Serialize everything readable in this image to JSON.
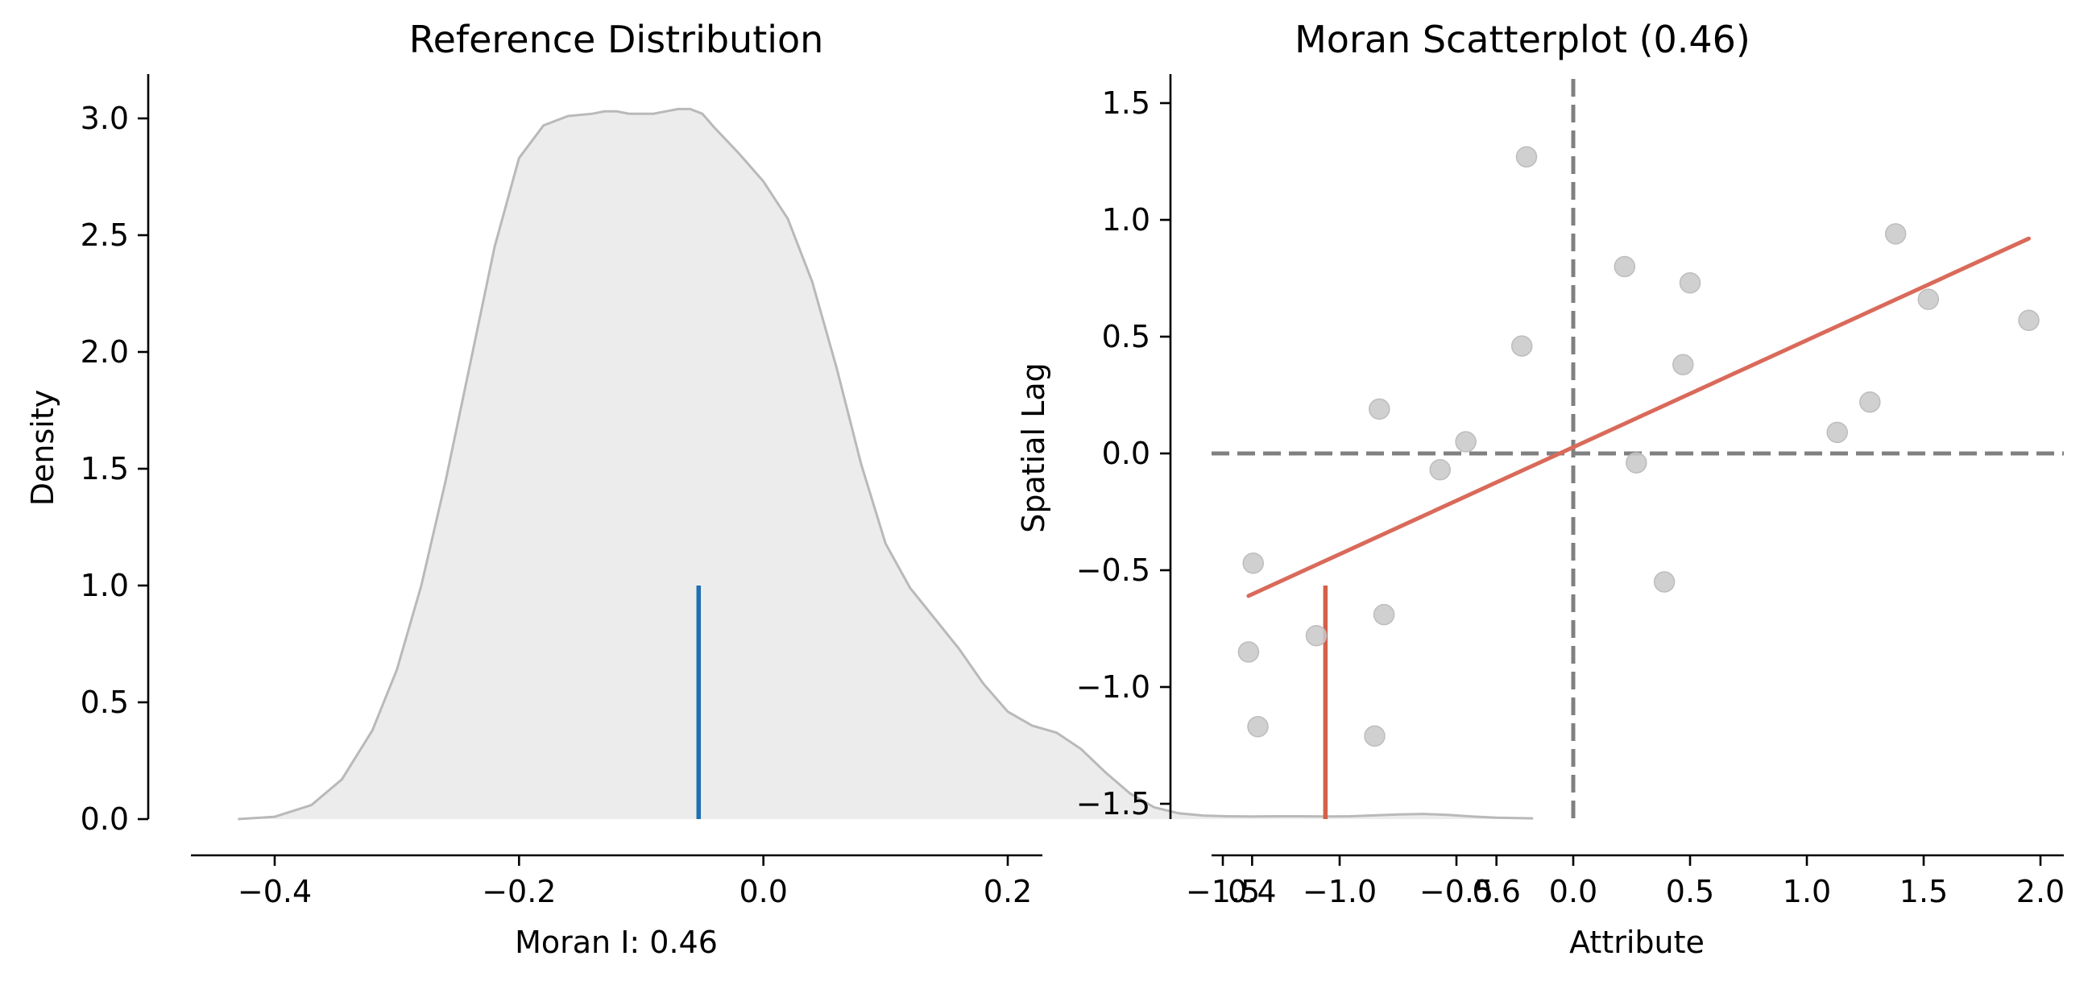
{
  "chart_data": [
    {
      "type": "area",
      "title": "Reference Distribution",
      "xlabel": "Moran I: 0.46",
      "ylabel": "Density",
      "xlim": [
        -0.48,
        0.69
      ],
      "ylim": [
        -0.0,
        3.2
      ],
      "xticks": [
        -0.4,
        -0.2,
        0.0,
        0.2,
        0.4,
        0.6
      ],
      "xtick_labels": [
        "−0.4",
        "−0.2",
        "0.0",
        "0.2",
        "0.4",
        "0.6"
      ],
      "yticks": [
        0.0,
        0.5,
        1.0,
        1.5,
        2.0,
        2.5,
        3.0
      ],
      "ytick_labels": [
        "0.0",
        "0.5",
        "1.0",
        "1.5",
        "2.0",
        "2.5",
        "3.0"
      ],
      "grid": false,
      "kde": {
        "x": [
          -0.43,
          -0.4,
          -0.37,
          -0.345,
          -0.32,
          -0.3,
          -0.28,
          -0.26,
          -0.24,
          -0.22,
          -0.2,
          -0.18,
          -0.16,
          -0.14,
          -0.13,
          -0.12,
          -0.11,
          -0.1,
          -0.09,
          -0.08,
          -0.07,
          -0.06,
          -0.05,
          -0.04,
          -0.02,
          0.0,
          0.02,
          0.04,
          0.06,
          0.08,
          0.1,
          0.12,
          0.14,
          0.16,
          0.18,
          0.2,
          0.22,
          0.24,
          0.26,
          0.28,
          0.3,
          0.32,
          0.34,
          0.36,
          0.38,
          0.4,
          0.42,
          0.44,
          0.46,
          0.48,
          0.5,
          0.52,
          0.54,
          0.56,
          0.58,
          0.6,
          0.63
        ],
        "density": [
          0.0,
          0.01,
          0.06,
          0.17,
          0.38,
          0.64,
          1.0,
          1.45,
          1.95,
          2.45,
          2.83,
          2.97,
          3.01,
          3.02,
          3.03,
          3.03,
          3.02,
          3.02,
          3.02,
          3.03,
          3.04,
          3.04,
          3.02,
          2.96,
          2.85,
          2.73,
          2.57,
          2.3,
          1.93,
          1.52,
          1.18,
          0.99,
          0.86,
          0.73,
          0.58,
          0.46,
          0.4,
          0.37,
          0.3,
          0.2,
          0.11,
          0.05,
          0.025,
          0.015,
          0.012,
          0.011,
          0.012,
          0.012,
          0.011,
          0.012,
          0.016,
          0.02,
          0.022,
          0.018,
          0.011,
          0.006,
          0.003
        ]
      },
      "fill_color": "#ececec",
      "line_color": "#b9b9b9",
      "vlines": [
        {
          "x": -0.053,
          "ymax": 1.0,
          "color": "#1f6fb4"
        },
        {
          "x": 0.46,
          "ymax": 1.0,
          "color": "#d4604a"
        }
      ]
    },
    {
      "type": "scatter",
      "title": "Moran Scatterplot (0.46)",
      "xlabel": "Attribute",
      "ylabel": "Spatial Lag",
      "xlim": [
        -1.55,
        2.1
      ],
      "ylim": [
        -1.6,
        1.6
      ],
      "xticks": [
        -1.5,
        -1.0,
        -0.5,
        0.0,
        0.5,
        1.0,
        1.5,
        2.0
      ],
      "xtick_labels": [
        "−1.5",
        "−1.0",
        "−0.5",
        "0.0",
        "0.5",
        "1.0",
        "1.5",
        "2.0"
      ],
      "yticks": [
        -1.5,
        -1.0,
        -0.5,
        0.0,
        0.5,
        1.0,
        1.5
      ],
      "ytick_labels": [
        "−1.5",
        "−1.0",
        "−0.5",
        "0.0",
        "0.5",
        "1.0",
        "1.5"
      ],
      "grid": false,
      "point_color": "#c8c8c8",
      "points": [
        {
          "x": -0.2,
          "y": 1.27
        },
        {
          "x": 0.22,
          "y": 0.8
        },
        {
          "x": 0.5,
          "y": 0.73
        },
        {
          "x": 1.38,
          "y": 0.94
        },
        {
          "x": 1.52,
          "y": 0.66
        },
        {
          "x": 1.95,
          "y": 0.57
        },
        {
          "x": -0.22,
          "y": 0.46
        },
        {
          "x": 0.47,
          "y": 0.38
        },
        {
          "x": -0.83,
          "y": 0.19
        },
        {
          "x": 1.27,
          "y": 0.22
        },
        {
          "x": 1.13,
          "y": 0.09
        },
        {
          "x": -0.46,
          "y": 0.05
        },
        {
          "x": -0.57,
          "y": -0.07
        },
        {
          "x": 0.27,
          "y": -0.04
        },
        {
          "x": 0.39,
          "y": -0.55
        },
        {
          "x": -1.37,
          "y": -0.47
        },
        {
          "x": -0.81,
          "y": -0.69
        },
        {
          "x": -1.1,
          "y": -0.78
        },
        {
          "x": -1.39,
          "y": -0.85
        },
        {
          "x": -1.35,
          "y": -1.17
        },
        {
          "x": -0.85,
          "y": -1.21
        }
      ],
      "regression": {
        "x": [
          -1.39,
          1.95
        ],
        "y": [
          -0.61,
          0.92
        ],
        "color": "#d96a5a"
      },
      "reference_lines": [
        {
          "orientation": "vertical",
          "value": 0.0,
          "style": "dashed",
          "color": "#808080"
        },
        {
          "orientation": "horizontal",
          "value": 0.0,
          "style": "dashed",
          "color": "#808080"
        }
      ]
    }
  ]
}
